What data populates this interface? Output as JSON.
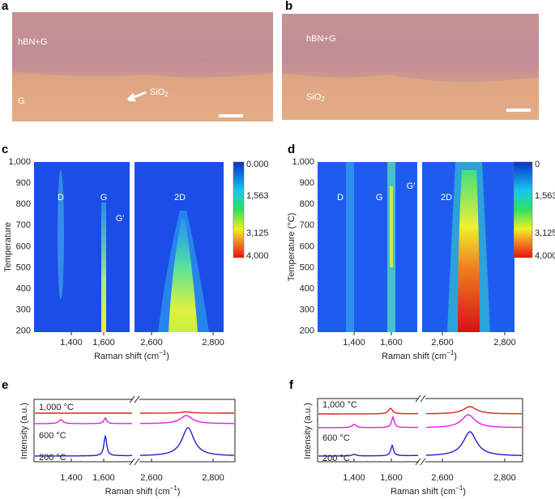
{
  "a": {
    "label": "a",
    "region_top": "hBN+G",
    "region_bottom": "G",
    "arrow_label": "SiO",
    "arrow_label_sub": "2"
  },
  "b": {
    "label": "b",
    "region_top": "hBN+G",
    "region_bottom": "SiO",
    "region_bottom_sub": "2"
  },
  "c": {
    "label": "c",
    "y_label": "Temperature",
    "x_label": "Raman shift (cm",
    "x_label_sup": "−1",
    "x_label_end": ")",
    "yticks": [
      "1,000",
      "900",
      "800",
      "700",
      "600",
      "500",
      "400",
      "300",
      "200"
    ],
    "xticks": [
      "1,400",
      "1,600",
      "2,600",
      "2,800"
    ],
    "peaks": [
      "D",
      "G",
      "G′",
      "2D"
    ],
    "colorbar": [
      "0.000",
      "1,563",
      "3,125",
      "4,000"
    ]
  },
  "d": {
    "label": "d",
    "y_label": "Temperature (°C)",
    "x_label": "Raman shift (cm",
    "x_label_sup": "−1",
    "x_label_end": ")",
    "yticks": [
      "1,000",
      "900",
      "800",
      "700",
      "600",
      "500",
      "400",
      "300",
      "200"
    ],
    "xticks": [
      "1,400",
      "1,600",
      "2,600",
      "2,800"
    ],
    "peaks": [
      "D",
      "G",
      "G′",
      "2D"
    ],
    "colorbar": [
      "0",
      "1,563",
      "3,125",
      "4,000"
    ]
  },
  "e": {
    "label": "e",
    "y_label": "Intensity (a.u.)",
    "x_label": "Raman shift (cm",
    "x_label_sup": "−1",
    "x_label_end": ")",
    "traces": [
      "1,000 °C",
      "600 °C",
      "200 °C"
    ],
    "xticks": [
      "1,400",
      "1,600",
      "2,600",
      "2,800"
    ]
  },
  "f": {
    "label": "f",
    "y_label": "Intensity (a.u.)",
    "x_label": "Raman shift (cm",
    "x_label_sup": "−1",
    "x_label_end": ")",
    "traces": [
      "1,000 °C",
      "600 °C",
      "200 °C"
    ],
    "xticks": [
      "1,400",
      "1,600",
      "2,600",
      "2,800"
    ]
  }
}
